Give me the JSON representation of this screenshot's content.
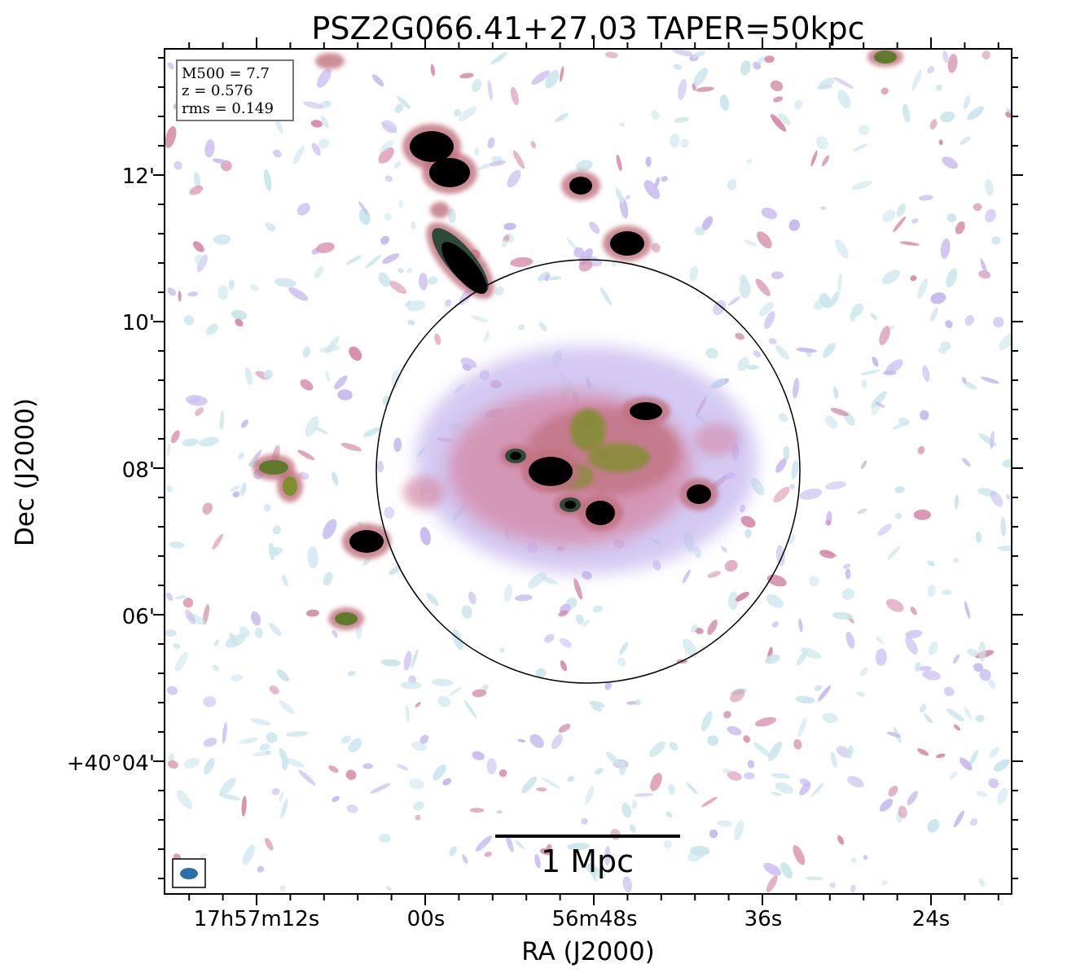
{
  "title": "PSZ2G066.41+27.03 TAPER=50kpc",
  "axes": {
    "xlabel": "RA (J2000)",
    "ylabel": "Dec (J2000)",
    "ra_ticks": [
      "17h57m12s",
      "00s",
      "56m48s",
      "36s",
      "24s"
    ],
    "dec_ticks": [
      "12'",
      "10'",
      "08'",
      "06'",
      "+40°04'"
    ]
  },
  "info_box": {
    "mass": "M500 = 7.7",
    "redshift": "z = 0.576",
    "rms": "rms = 0.149"
  },
  "scale_bar": {
    "label": "1 Mpc"
  },
  "colors": {
    "noise_light": "#c9e6ec",
    "noise_lavender": "#c5b8ef",
    "emission_pink": "#d58aa8",
    "emission_rose": "#c0707e",
    "emission_green": "#7f8f2e",
    "source_core": "#000000",
    "beam": "#2a6fad"
  }
}
